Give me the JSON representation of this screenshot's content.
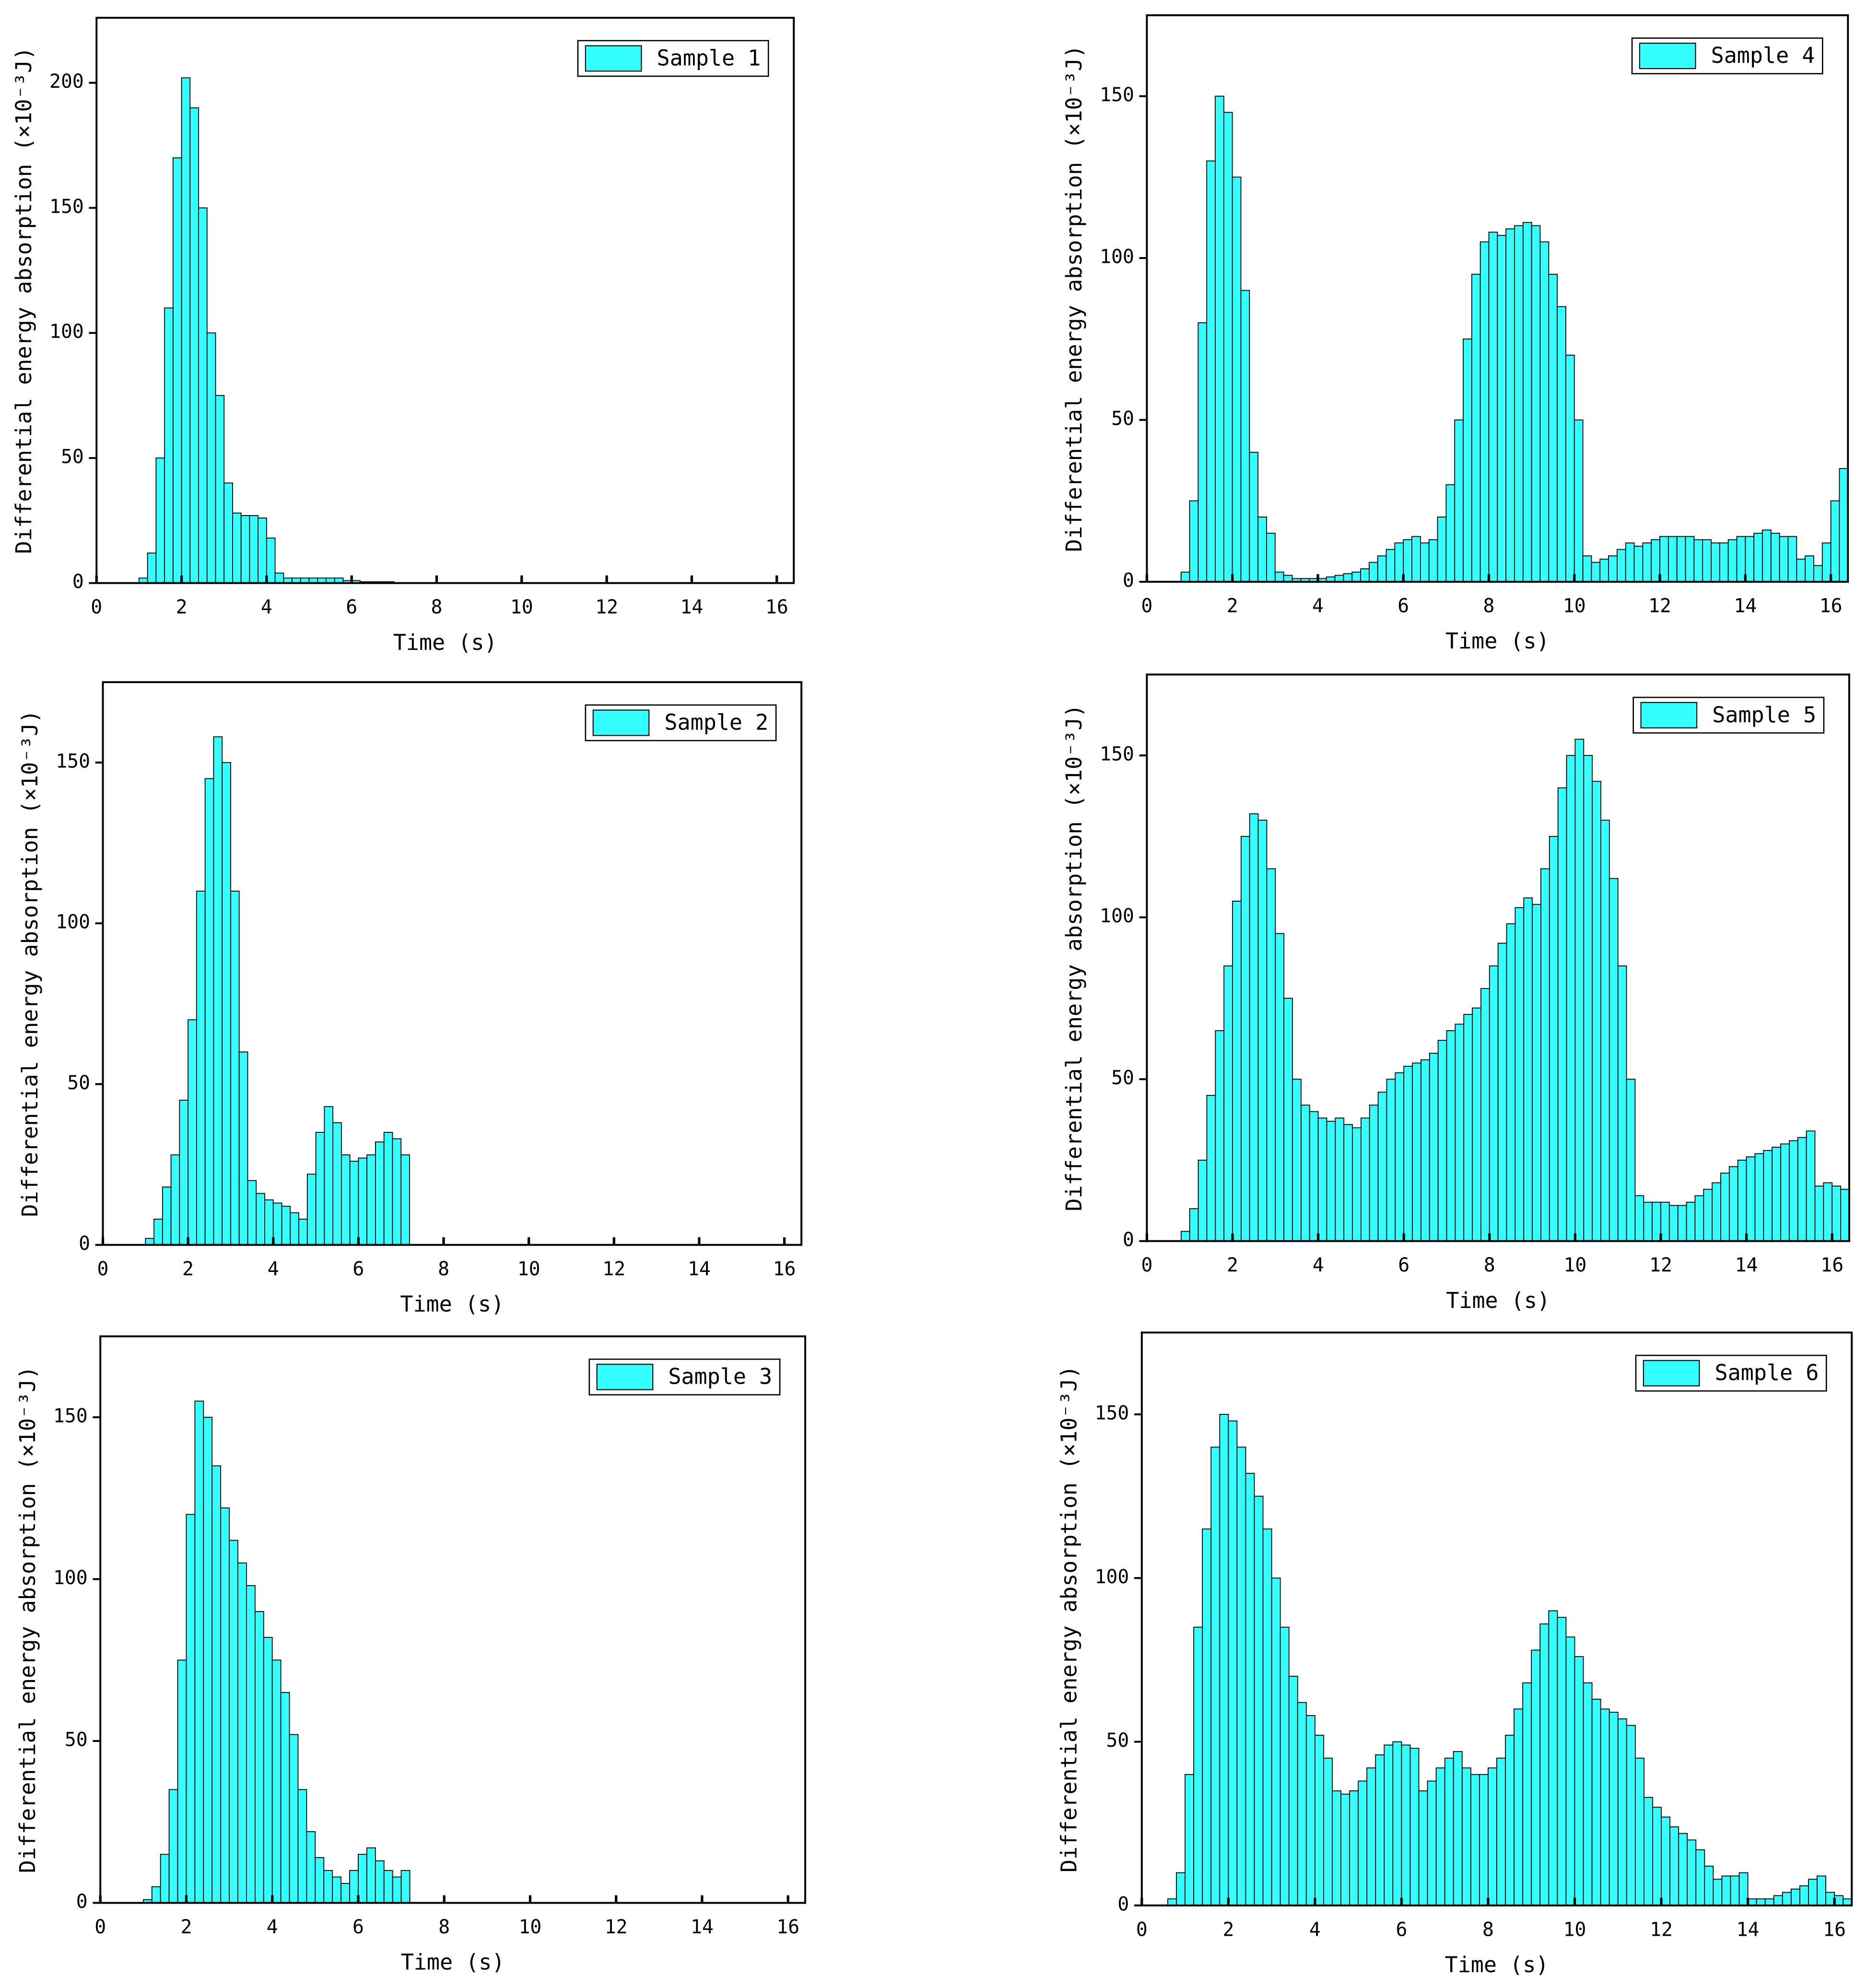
{
  "chart_data": [
    {
      "type": "histogram",
      "name": "Sample 1",
      "color": "#33ffff",
      "legend": "upper right",
      "xlabel": "Time (s)",
      "ylabel": "Differential energy absorption (×10⁻³J)",
      "xlim": [
        0,
        16.4
      ],
      "ylim": [
        0,
        226
      ],
      "xticks": [
        0,
        2,
        4,
        6,
        8,
        10,
        12,
        14,
        16
      ],
      "yticks": [
        0,
        50,
        100,
        150,
        200
      ],
      "bins": [
        1,
        1.2,
        1.4,
        1.6,
        1.8,
        2,
        2.2,
        2.4,
        2.6,
        2.8,
        3,
        3.2,
        3.4,
        3.6,
        3.8,
        4,
        4.2,
        4.4,
        4.6,
        4.8,
        5,
        5.2,
        5.4,
        5.6,
        5.8,
        6,
        6.2,
        6.4,
        6.6,
        6.8,
        7
      ],
      "counts": [
        2,
        12,
        50,
        110,
        170,
        202,
        190,
        150,
        100,
        75,
        40,
        28,
        27,
        27,
        26,
        18,
        4,
        2,
        2,
        2,
        2,
        2,
        2,
        2,
        1,
        1,
        0.5,
        0.5,
        0.5,
        0.5
      ]
    },
    {
      "type": "histogram",
      "name": "Sample 2",
      "color": "#33ffff",
      "legend": "upper right",
      "xlabel": "Time (s)",
      "ylabel": "Differential energy absorption (×10⁻³J)",
      "xlim": [
        0,
        16.4
      ],
      "ylim": [
        0,
        175
      ],
      "xticks": [
        0,
        2,
        4,
        6,
        8,
        10,
        12,
        14,
        16
      ],
      "yticks": [
        0,
        50,
        100,
        150
      ],
      "bins": [
        1,
        1.2,
        1.4,
        1.6,
        1.8,
        2,
        2.2,
        2.4,
        2.6,
        2.8,
        3,
        3.2,
        3.4,
        3.6,
        3.8,
        4,
        4.2,
        4.4,
        4.6,
        4.8,
        5,
        5.2,
        5.4,
        5.6,
        5.8,
        6,
        6.2,
        6.4,
        6.6,
        6.8,
        7,
        7.2
      ],
      "counts": [
        2,
        8,
        18,
        28,
        45,
        70,
        110,
        145,
        158,
        150,
        110,
        60,
        20,
        16,
        14,
        13,
        12,
        10,
        8,
        22,
        35,
        43,
        38,
        28,
        26,
        27,
        28,
        32,
        35,
        33,
        28
      ]
    },
    {
      "type": "histogram",
      "name": "Sample 3",
      "color": "#33ffff",
      "legend": "upper right",
      "xlabel": "Time (s)",
      "ylabel": "Differential energy absorption (×10⁻³J)",
      "xlim": [
        0,
        16.4
      ],
      "ylim": [
        0,
        175
      ],
      "xticks": [
        0,
        2,
        4,
        6,
        8,
        10,
        12,
        14,
        16
      ],
      "yticks": [
        0,
        50,
        100,
        150
      ],
      "bins": [
        1,
        1.2,
        1.4,
        1.6,
        1.8,
        2,
        2.2,
        2.4,
        2.6,
        2.8,
        3,
        3.2,
        3.4,
        3.6,
        3.8,
        4,
        4.2,
        4.4,
        4.6,
        4.8,
        5,
        5.2,
        5.4,
        5.6,
        5.8,
        6,
        6.2,
        6.4,
        6.6,
        6.8,
        7,
        7.2
      ],
      "counts": [
        1,
        5,
        15,
        35,
        75,
        120,
        155,
        150,
        135,
        122,
        112,
        105,
        98,
        90,
        82,
        75,
        65,
        52,
        35,
        22,
        14,
        10,
        8,
        6,
        10,
        15,
        17,
        13,
        10,
        8,
        10
      ]
    },
    {
      "type": "histogram",
      "name": "Sample 4",
      "color": "#33ffff",
      "legend": "upper right",
      "xlabel": "Time (s)",
      "ylabel": "Differential energy absorption (×10⁻³J)",
      "xlim": [
        0,
        16.4
      ],
      "ylim": [
        0,
        175
      ],
      "xticks": [
        0,
        2,
        4,
        6,
        8,
        10,
        12,
        14,
        16
      ],
      "yticks": [
        0,
        50,
        100,
        150
      ],
      "bins": [
        0.8,
        1,
        1.2,
        1.4,
        1.6,
        1.8,
        2,
        2.2,
        2.4,
        2.6,
        2.8,
        3,
        3.2,
        3.4,
        3.6,
        3.8,
        4,
        4.2,
        4.4,
        4.6,
        4.8,
        5,
        5.2,
        5.4,
        5.6,
        5.8,
        6,
        6.2,
        6.4,
        6.6,
        6.8,
        7,
        7.2,
        7.4,
        7.6,
        7.8,
        8,
        8.2,
        8.4,
        8.6,
        8.8,
        9,
        9.2,
        9.4,
        9.6,
        9.8,
        10,
        10.2,
        10.4,
        10.6,
        10.8,
        11,
        11.2,
        11.4,
        11.6,
        11.8,
        12,
        12.2,
        12.4,
        12.6,
        12.8,
        13,
        13.2,
        13.4,
        13.6,
        13.8,
        14,
        14.2,
        14.4,
        14.6,
        14.8,
        15,
        15.2,
        15.4,
        15.6,
        15.8,
        16,
        16.2,
        16.4
      ],
      "counts": [
        3,
        25,
        80,
        130,
        150,
        145,
        125,
        90,
        40,
        20,
        15,
        3,
        2,
        1,
        1,
        1,
        1,
        1.5,
        2,
        2.5,
        3,
        4,
        6,
        8,
        10,
        12,
        13,
        14,
        12,
        13,
        20,
        30,
        50,
        75,
        95,
        105,
        108,
        107,
        109,
        110,
        111,
        110,
        105,
        95,
        85,
        70,
        50,
        8,
        6,
        7,
        8,
        10,
        12,
        11,
        12,
        13,
        14,
        14,
        14,
        14,
        13,
        13,
        12,
        12,
        13,
        14,
        14,
        15,
        16,
        15,
        14,
        14,
        7,
        8,
        5,
        12,
        25,
        35
      ]
    },
    {
      "type": "histogram",
      "name": "Sample 5",
      "color": "#33ffff",
      "legend": "upper right",
      "xlabel": "Time (s)",
      "ylabel": "Differential energy absorption (×10⁻³J)",
      "xlim": [
        0,
        16.4
      ],
      "ylim": [
        0,
        175
      ],
      "xticks": [
        0,
        2,
        4,
        6,
        8,
        10,
        12,
        14,
        16
      ],
      "yticks": [
        0,
        50,
        100,
        150
      ],
      "bins": [
        0.8,
        1,
        1.2,
        1.4,
        1.6,
        1.8,
        2,
        2.2,
        2.4,
        2.6,
        2.8,
        3,
        3.2,
        3.4,
        3.6,
        3.8,
        4,
        4.2,
        4.4,
        4.6,
        4.8,
        5,
        5.2,
        5.4,
        5.6,
        5.8,
        6,
        6.2,
        6.4,
        6.6,
        6.8,
        7,
        7.2,
        7.4,
        7.6,
        7.8,
        8,
        8.2,
        8.4,
        8.6,
        8.8,
        9,
        9.2,
        9.4,
        9.6,
        9.8,
        10,
        10.2,
        10.4,
        10.6,
        10.8,
        11,
        11.2,
        11.4,
        11.6,
        11.8,
        12,
        12.2,
        12.4,
        12.6,
        12.8,
        13,
        13.2,
        13.4,
        13.6,
        13.8,
        14,
        14.2,
        14.4,
        14.6,
        14.8,
        15,
        15.2,
        15.4,
        15.6,
        15.8,
        16,
        16.2,
        16.4
      ],
      "counts": [
        3,
        10,
        25,
        45,
        65,
        85,
        105,
        125,
        132,
        130,
        115,
        95,
        75,
        50,
        42,
        40,
        38,
        37,
        38,
        36,
        35,
        38,
        42,
        46,
        50,
        52,
        54,
        55,
        56,
        58,
        62,
        65,
        67,
        70,
        72,
        78,
        85,
        92,
        98,
        103,
        106,
        104,
        115,
        125,
        140,
        150,
        155,
        150,
        142,
        130,
        112,
        85,
        50,
        14,
        12,
        12,
        12,
        11,
        11,
        12,
        14,
        16,
        18,
        21,
        23,
        25,
        26,
        27,
        28,
        29,
        30,
        31,
        32,
        34,
        17,
        18,
        17,
        16
      ]
    },
    {
      "type": "histogram",
      "name": "Sample 6",
      "color": "#33ffff",
      "legend": "upper right",
      "xlabel": "Time (s)",
      "ylabel": "Differential energy absorption (×10⁻³J)",
      "xlim": [
        0,
        16.4
      ],
      "ylim": [
        0,
        175
      ],
      "xticks": [
        0,
        2,
        4,
        6,
        8,
        10,
        12,
        14,
        16
      ],
      "yticks": [
        0,
        50,
        100,
        150
      ],
      "bins": [
        0.6,
        0.8,
        1,
        1.2,
        1.4,
        1.6,
        1.8,
        2,
        2.2,
        2.4,
        2.6,
        2.8,
        3,
        3.2,
        3.4,
        3.6,
        3.8,
        4,
        4.2,
        4.4,
        4.6,
        4.8,
        5,
        5.2,
        5.4,
        5.6,
        5.8,
        6,
        6.2,
        6.4,
        6.6,
        6.8,
        7,
        7.2,
        7.4,
        7.6,
        7.8,
        8,
        8.2,
        8.4,
        8.6,
        8.8,
        9,
        9.2,
        9.4,
        9.6,
        9.8,
        10,
        10.2,
        10.4,
        10.6,
        10.8,
        11,
        11.2,
        11.4,
        11.6,
        11.8,
        12,
        12.2,
        12.4,
        12.6,
        12.8,
        13,
        13.2,
        13.4,
        13.6,
        13.8,
        14,
        14.2,
        14.4,
        14.6,
        14.8,
        15,
        15.2,
        15.4,
        15.6,
        15.8,
        16,
        16.2,
        16.4
      ],
      "counts": [
        2,
        10,
        40,
        85,
        115,
        140,
        150,
        148,
        140,
        132,
        125,
        115,
        100,
        85,
        70,
        62,
        58,
        52,
        45,
        35,
        34,
        35,
        38,
        42,
        46,
        49,
        50,
        49,
        48,
        35,
        38,
        42,
        45,
        47,
        42,
        40,
        40,
        42,
        45,
        52,
        60,
        68,
        78,
        86,
        90,
        88,
        82,
        76,
        68,
        63,
        60,
        59,
        57,
        55,
        45,
        33,
        30,
        27,
        24,
        22,
        20,
        17,
        12,
        8,
        9,
        9,
        10,
        2,
        2,
        2,
        3,
        4,
        5,
        6,
        8,
        9,
        4,
        3,
        2
      ]
    }
  ]
}
